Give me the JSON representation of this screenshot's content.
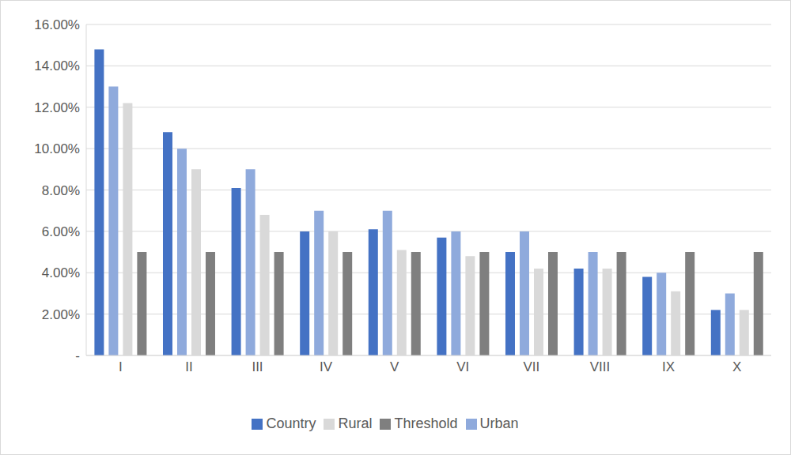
{
  "chart_data": {
    "type": "bar",
    "categories": [
      "I",
      "II",
      "III",
      "IV",
      "V",
      "VI",
      "VII",
      "VIII",
      "IX",
      "X"
    ],
    "series": [
      {
        "name": "Country",
        "color": "#4472c4",
        "values": [
          14.8,
          10.8,
          8.1,
          6.0,
          6.1,
          5.7,
          5.0,
          4.2,
          3.8,
          2.2
        ]
      },
      {
        "name": "Urban",
        "color": "#8faadc",
        "values": [
          13.0,
          10.0,
          9.0,
          7.0,
          7.0,
          6.0,
          6.0,
          5.0,
          4.0,
          3.0
        ]
      },
      {
        "name": "Rural",
        "color": "#d9d9d9",
        "values": [
          12.2,
          9.0,
          6.8,
          6.0,
          5.1,
          4.8,
          4.2,
          4.2,
          3.1,
          2.2
        ]
      },
      {
        "name": "Threshold",
        "color": "#7f7f7f",
        "values": [
          5,
          5,
          5,
          5,
          5,
          5,
          5,
          5,
          5,
          5
        ]
      }
    ],
    "ylim": [
      0,
      16
    ],
    "yticks": [
      {
        "value": 0,
        "label": "-"
      },
      {
        "value": 2,
        "label": "2.00%"
      },
      {
        "value": 4,
        "label": "4.00%"
      },
      {
        "value": 6,
        "label": "6.00%"
      },
      {
        "value": 8,
        "label": "8.00%"
      },
      {
        "value": 10,
        "label": "10.00%"
      },
      {
        "value": 12,
        "label": "12.00%"
      },
      {
        "value": 14,
        "label": "14.00%"
      },
      {
        "value": 16,
        "label": "16.00%"
      }
    ],
    "grid": true,
    "legend": "bottom"
  }
}
